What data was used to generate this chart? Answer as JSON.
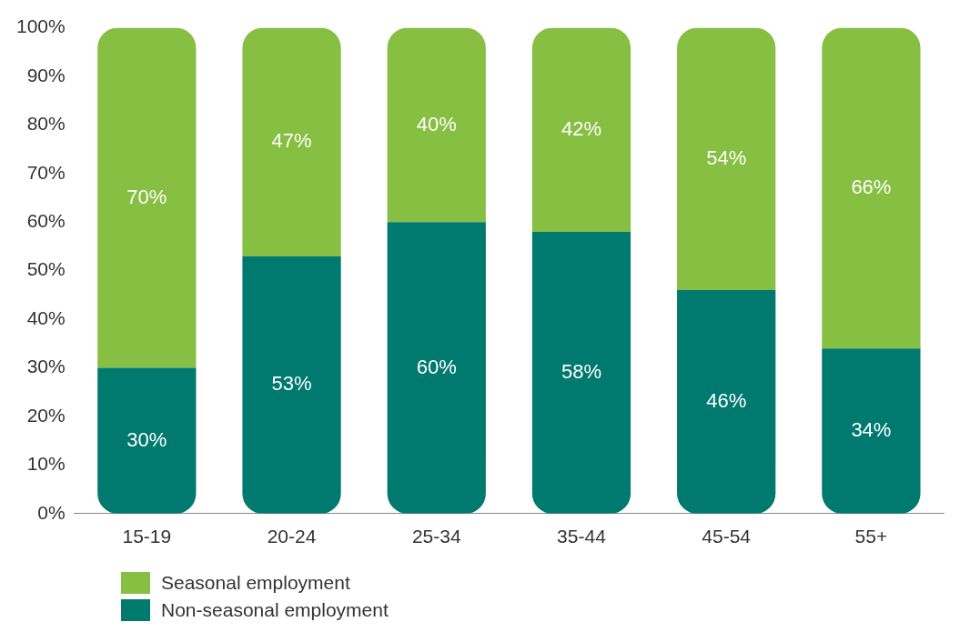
{
  "chart_data": {
    "type": "bar",
    "stacked": true,
    "categories": [
      "15-19",
      "20-24",
      "25-34",
      "35-44",
      "45-54",
      "55+"
    ],
    "series": [
      {
        "name": "Non-seasonal employment",
        "color": "#00796f",
        "values": [
          30,
          53,
          60,
          58,
          46,
          34
        ],
        "value_labels": [
          "30%",
          "53%",
          "60%",
          "58%",
          "46%",
          "34%"
        ]
      },
      {
        "name": "Seasonal employment",
        "color": "#86bf41",
        "values": [
          70,
          47,
          40,
          42,
          54,
          66
        ],
        "value_labels": [
          "70%",
          "47%",
          "40%",
          "42%",
          "54%",
          "66%"
        ]
      }
    ],
    "ylim": [
      0,
      100
    ],
    "yticks": [
      {
        "value": 0,
        "label": "0%"
      },
      {
        "value": 10,
        "label": "10%"
      },
      {
        "value": 20,
        "label": "20%"
      },
      {
        "value": 30,
        "label": "30%"
      },
      {
        "value": 40,
        "label": "40%"
      },
      {
        "value": 50,
        "label": "50%"
      },
      {
        "value": 60,
        "label": "60%"
      },
      {
        "value": 70,
        "label": "70%"
      },
      {
        "value": 80,
        "label": "80%"
      },
      {
        "value": 90,
        "label": "90%"
      },
      {
        "value": 100,
        "label": "100%"
      }
    ],
    "grid": false,
    "legend": "bottom left"
  }
}
